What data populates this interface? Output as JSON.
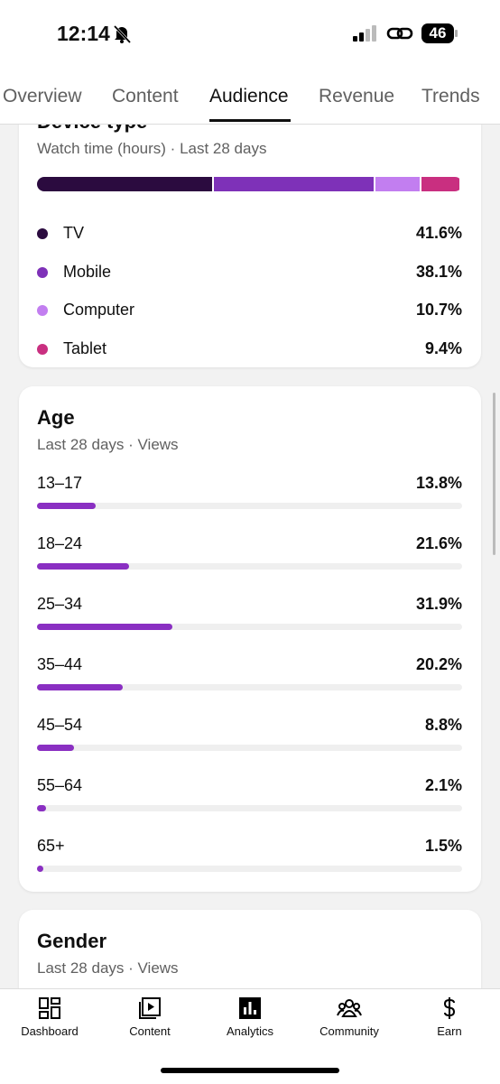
{
  "status": {
    "time": "12:14",
    "battery": "46"
  },
  "tabs": [
    "Overview",
    "Content",
    "Audience",
    "Revenue",
    "Trends"
  ],
  "device_type": {
    "title": "Device type",
    "subtitle": "Watch time (hours) · Last 28 days",
    "items": [
      {
        "name": "TV",
        "value": 41.6,
        "label": "41.6%",
        "color": "#2b0b3f"
      },
      {
        "name": "Mobile",
        "value": 38.1,
        "label": "38.1%",
        "color": "#7e31b8"
      },
      {
        "name": "Computer",
        "value": 10.7,
        "label": "10.7%",
        "color": "#c27ef0"
      },
      {
        "name": "Tablet",
        "value": 9.4,
        "label": "9.4%",
        "color": "#c92f80"
      }
    ]
  },
  "age": {
    "title": "Age",
    "subtitle": "Last 28 days · Views",
    "rows": [
      {
        "name": "13–17",
        "value": 13.8,
        "label": "13.8%"
      },
      {
        "name": "18–24",
        "value": 21.6,
        "label": "21.6%"
      },
      {
        "name": "25–34",
        "value": 31.9,
        "label": "31.9%"
      },
      {
        "name": "35–44",
        "value": 20.2,
        "label": "20.2%"
      },
      {
        "name": "45–54",
        "value": 8.8,
        "label": "8.8%"
      },
      {
        "name": "55–64",
        "value": 2.1,
        "label": "2.1%"
      },
      {
        "name": "65+",
        "value": 1.5,
        "label": "1.5%"
      }
    ]
  },
  "gender": {
    "title": "Gender",
    "subtitle": "Last 28 days · Views"
  },
  "nav": [
    "Dashboard",
    "Content",
    "Analytics",
    "Community",
    "Earn"
  ]
}
